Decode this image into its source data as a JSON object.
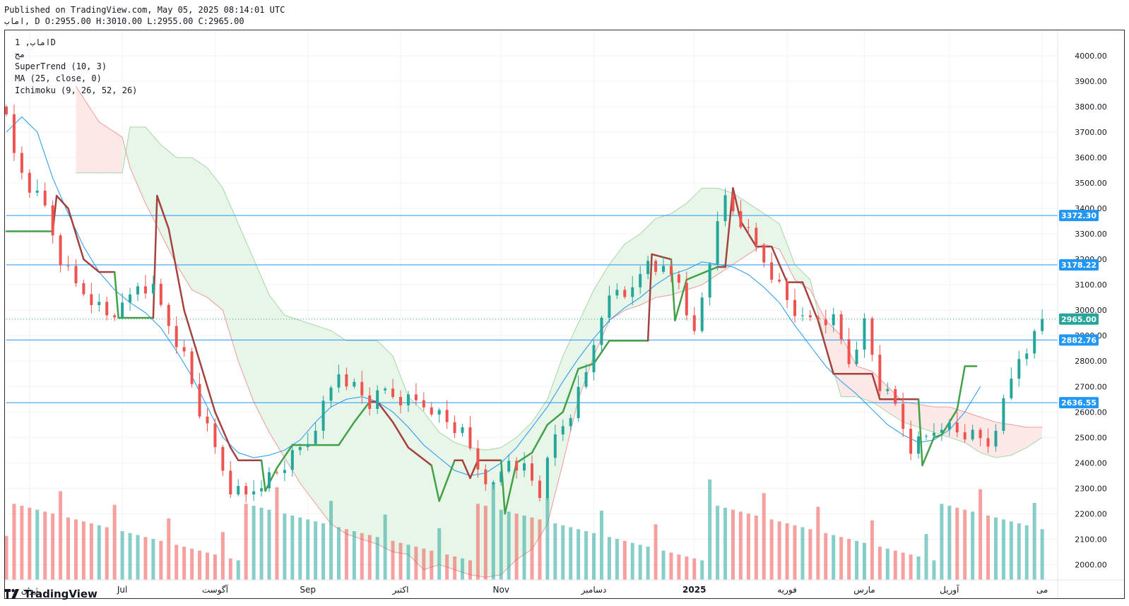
{
  "header": {
    "published": "Published on TradingView.com, May 05, 2025 08:14:01 UTC",
    "ohlc": "اماب, D O:2955.00 H:3010.00 L:2955.00 C:2965.00"
  },
  "legend": {
    "symbol": "اماب, 1D",
    "subtitle": "مج",
    "indicators": [
      "SuperTrend (10, 3)",
      "MA (25, close, 0)",
      "Ichimoku (9, 26, 52, 26)"
    ]
  },
  "footer": {
    "brand": "TradingView",
    "logo_icon": "tradingview-logo-icon"
  },
  "colors": {
    "up": "#26a69a",
    "down": "#ef5350",
    "supertrend_up": "#43a047",
    "supertrend_down": "#a5413e",
    "ma": "#2196f3",
    "hline": "#2196f3",
    "cloud_green": "#e8f5e9",
    "cloud_red": "#fde8e8"
  },
  "chart_data": {
    "type": "candlestick",
    "ylim": [
      1940,
      4100
    ],
    "y_ticks": [
      2000,
      2100,
      2200,
      2300,
      2400,
      2500,
      2600,
      2700,
      2800,
      2900,
      3000,
      3100,
      3200,
      3300,
      3400,
      3500,
      3600,
      3700,
      3800,
      3900,
      4000
    ],
    "y_tick_labels": [
      "2000.00",
      "2100.00",
      "2200.00",
      "2300.00",
      "2400.00",
      "2500.00",
      "2600.00",
      "2700.00",
      "2800.00",
      "2900.00",
      "3000.00",
      "3100.00",
      "3200.00",
      "3300.00",
      "3400.00",
      "3500.00",
      "3600.00",
      "3700.00",
      "3800.00",
      "3900.00",
      "4000.00"
    ],
    "x_labels": [
      {
        "label": "ژوئن",
        "day": 6
      },
      {
        "label": "Jul",
        "day": 30
      },
      {
        "label": "آگوست",
        "day": 54
      },
      {
        "label": "Sep",
        "day": 78
      },
      {
        "label": "اکتبر",
        "day": 102
      },
      {
        "label": "Nov",
        "day": 128
      },
      {
        "label": "دسامبر",
        "day": 152
      },
      {
        "label": "2025",
        "day": 178
      },
      {
        "label": "فوریه",
        "day": 202
      },
      {
        "label": "مارس",
        "day": 222
      },
      {
        "label": "آوریل",
        "day": 244
      },
      {
        "label": "می",
        "day": 268
      }
    ],
    "horizontal_lines": [
      {
        "value": 3372.3,
        "label": "3372.30"
      },
      {
        "value": 3178.22,
        "label": "3178.22"
      },
      {
        "value": 2882.76,
        "label": "2882.76"
      },
      {
        "value": 2636.55,
        "label": "2636.55"
      }
    ],
    "last_price": {
      "value": 2965.0,
      "label": "2965.00"
    },
    "price_path": [
      [
        0,
        3800
      ],
      [
        2,
        3600
      ],
      [
        6,
        3480
      ],
      [
        10,
        3400
      ],
      [
        14,
        3200
      ],
      [
        18,
        3100
      ],
      [
        22,
        3050
      ],
      [
        26,
        2980
      ],
      [
        30,
        3000
      ],
      [
        34,
        3100
      ],
      [
        38,
        3080
      ],
      [
        42,
        2950
      ],
      [
        46,
        2820
      ],
      [
        50,
        2600
      ],
      [
        54,
        2450
      ],
      [
        58,
        2300
      ],
      [
        62,
        2270
      ],
      [
        66,
        2330
      ],
      [
        70,
        2360
      ],
      [
        74,
        2420
      ],
      [
        78,
        2480
      ],
      [
        82,
        2620
      ],
      [
        86,
        2760
      ],
      [
        90,
        2700
      ],
      [
        94,
        2630
      ],
      [
        98,
        2680
      ],
      [
        102,
        2650
      ],
      [
        106,
        2640
      ],
      [
        110,
        2620
      ],
      [
        114,
        2560
      ],
      [
        118,
        2510
      ],
      [
        122,
        2380
      ],
      [
        126,
        2300
      ],
      [
        130,
        2420
      ],
      [
        134,
        2380
      ],
      [
        138,
        2280
      ],
      [
        142,
        2500
      ],
      [
        146,
        2600
      ],
      [
        150,
        2750
      ],
      [
        154,
        3000
      ],
      [
        158,
        3080
      ],
      [
        162,
        3060
      ],
      [
        166,
        3200
      ],
      [
        170,
        3150
      ],
      [
        174,
        3120
      ],
      [
        178,
        2900
      ],
      [
        182,
        3200
      ],
      [
        186,
        3440
      ],
      [
        190,
        3350
      ],
      [
        194,
        3250
      ],
      [
        198,
        3150
      ],
      [
        202,
        3040
      ],
      [
        206,
        2950
      ],
      [
        210,
        2970
      ],
      [
        214,
        2960
      ],
      [
        218,
        2800
      ],
      [
        222,
        2950
      ],
      [
        226,
        2700
      ],
      [
        230,
        2620
      ],
      [
        234,
        2460
      ],
      [
        238,
        2500
      ],
      [
        242,
        2560
      ],
      [
        246,
        2520
      ],
      [
        250,
        2500
      ],
      [
        254,
        2470
      ],
      [
        258,
        2630
      ],
      [
        262,
        2820
      ],
      [
        266,
        2900
      ],
      [
        268,
        2965
      ]
    ],
    "supertrend": [
      [
        0,
        3310,
        "up"
      ],
      [
        12,
        3310,
        "up"
      ],
      [
        13,
        3450,
        "down"
      ],
      [
        16,
        3400,
        "down"
      ],
      [
        20,
        3200,
        "down"
      ],
      [
        24,
        3150,
        "down"
      ],
      [
        28,
        3150,
        "down"
      ],
      [
        29,
        2970,
        "up"
      ],
      [
        38,
        2970,
        "up"
      ],
      [
        39,
        3450,
        "down"
      ],
      [
        42,
        3320,
        "down"
      ],
      [
        46,
        3000,
        "down"
      ],
      [
        50,
        2800,
        "down"
      ],
      [
        54,
        2600,
        "down"
      ],
      [
        58,
        2460,
        "down"
      ],
      [
        60,
        2410,
        "down"
      ],
      [
        66,
        2410,
        "down"
      ],
      [
        67,
        2290,
        "up"
      ],
      [
        70,
        2380,
        "up"
      ],
      [
        74,
        2470,
        "up"
      ],
      [
        86,
        2470,
        "up"
      ],
      [
        90,
        2560,
        "up"
      ],
      [
        94,
        2640,
        "up"
      ],
      [
        96,
        2640,
        "down"
      ],
      [
        100,
        2560,
        "down"
      ],
      [
        104,
        2460,
        "down"
      ],
      [
        110,
        2390,
        "down"
      ],
      [
        112,
        2250,
        "up"
      ],
      [
        116,
        2410,
        "up"
      ],
      [
        118,
        2410,
        "down"
      ],
      [
        120,
        2340,
        "down"
      ],
      [
        122,
        2410,
        "down"
      ],
      [
        128,
        2410,
        "down"
      ],
      [
        129,
        2200,
        "up"
      ],
      [
        132,
        2400,
        "up"
      ],
      [
        136,
        2440,
        "up"
      ],
      [
        140,
        2550,
        "up"
      ],
      [
        144,
        2600,
        "up"
      ],
      [
        148,
        2770,
        "up"
      ],
      [
        152,
        2790,
        "up"
      ],
      [
        156,
        2880,
        "up"
      ],
      [
        166,
        2880,
        "up"
      ],
      [
        167,
        3220,
        "down"
      ],
      [
        172,
        3200,
        "down"
      ],
      [
        173,
        2960,
        "up"
      ],
      [
        176,
        3120,
        "up"
      ],
      [
        184,
        3170,
        "up"
      ],
      [
        186,
        3170,
        "down"
      ],
      [
        188,
        3480,
        "down"
      ],
      [
        190,
        3350,
        "down"
      ],
      [
        194,
        3250,
        "down"
      ],
      [
        198,
        3250,
        "down"
      ],
      [
        202,
        3110,
        "down"
      ],
      [
        206,
        3110,
        "down"
      ],
      [
        210,
        2960,
        "down"
      ],
      [
        214,
        2750,
        "down"
      ],
      [
        224,
        2750,
        "down"
      ],
      [
        226,
        2650,
        "down"
      ],
      [
        236,
        2650,
        "down"
      ],
      [
        237,
        2390,
        "up"
      ],
      [
        240,
        2500,
        "up"
      ],
      [
        242,
        2510,
        "up"
      ],
      [
        246,
        2610,
        "up"
      ],
      [
        248,
        2780,
        "up"
      ],
      [
        251,
        2780,
        "up"
      ]
    ],
    "ma": [
      [
        0,
        3700
      ],
      [
        4,
        3760
      ],
      [
        8,
        3700
      ],
      [
        12,
        3520
      ],
      [
        16,
        3380
      ],
      [
        20,
        3250
      ],
      [
        24,
        3150
      ],
      [
        28,
        3080
      ],
      [
        32,
        3030
      ],
      [
        36,
        2990
      ],
      [
        40,
        2930
      ],
      [
        44,
        2840
      ],
      [
        48,
        2740
      ],
      [
        52,
        2620
      ],
      [
        56,
        2500
      ],
      [
        60,
        2440
      ],
      [
        64,
        2420
      ],
      [
        68,
        2430
      ],
      [
        72,
        2450
      ],
      [
        76,
        2490
      ],
      [
        80,
        2560
      ],
      [
        84,
        2620
      ],
      [
        88,
        2650
      ],
      [
        92,
        2660
      ],
      [
        96,
        2640
      ],
      [
        100,
        2600
      ],
      [
        104,
        2540
      ],
      [
        108,
        2470
      ],
      [
        112,
        2420
      ],
      [
        116,
        2370
      ],
      [
        120,
        2350
      ],
      [
        124,
        2360
      ],
      [
        128,
        2400
      ],
      [
        132,
        2460
      ],
      [
        136,
        2540
      ],
      [
        140,
        2620
      ],
      [
        144,
        2720
      ],
      [
        148,
        2810
      ],
      [
        152,
        2890
      ],
      [
        156,
        2960
      ],
      [
        160,
        3010
      ],
      [
        164,
        3050
      ],
      [
        168,
        3100
      ],
      [
        172,
        3140
      ],
      [
        176,
        3160
      ],
      [
        180,
        3190
      ],
      [
        184,
        3180
      ],
      [
        188,
        3170
      ],
      [
        192,
        3140
      ],
      [
        196,
        3090
      ],
      [
        200,
        3030
      ],
      [
        204,
        2940
      ],
      [
        208,
        2860
      ],
      [
        212,
        2780
      ],
      [
        216,
        2720
      ],
      [
        220,
        2670
      ],
      [
        224,
        2610
      ],
      [
        228,
        2550
      ],
      [
        232,
        2510
      ],
      [
        236,
        2480
      ],
      [
        240,
        2490
      ],
      [
        244,
        2530
      ],
      [
        248,
        2600
      ],
      [
        252,
        2700
      ]
    ],
    "cloud": [
      [
        18,
        3540,
        3880
      ],
      [
        24,
        3540,
        3740
      ],
      [
        28,
        3540,
        3700
      ],
      [
        30,
        3540,
        3680
      ],
      [
        32,
        3720,
        3560
      ],
      [
        36,
        3720,
        3420
      ],
      [
        40,
        3650,
        3300
      ],
      [
        44,
        3600,
        3180
      ],
      [
        48,
        3600,
        3080
      ],
      [
        52,
        3560,
        3050
      ],
      [
        56,
        3480,
        3000
      ],
      [
        60,
        3340,
        2800
      ],
      [
        64,
        3200,
        2640
      ],
      [
        68,
        3060,
        2520
      ],
      [
        72,
        2980,
        2420
      ],
      [
        76,
        2960,
        2320
      ],
      [
        80,
        2940,
        2240
      ],
      [
        84,
        2920,
        2160
      ],
      [
        88,
        2880,
        2120
      ],
      [
        92,
        2880,
        2100
      ],
      [
        96,
        2880,
        2080
      ],
      [
        100,
        2820,
        2050
      ],
      [
        104,
        2660,
        2040
      ],
      [
        108,
        2600,
        1980
      ],
      [
        112,
        2520,
        2000
      ],
      [
        116,
        2480,
        1980
      ],
      [
        120,
        2460,
        1960
      ],
      [
        124,
        2450,
        1950
      ],
      [
        128,
        2460,
        1960
      ],
      [
        132,
        2500,
        2020
      ],
      [
        136,
        2560,
        2060
      ],
      [
        140,
        2650,
        2160
      ],
      [
        144,
        2820,
        2400
      ],
      [
        148,
        2950,
        2650
      ],
      [
        152,
        3080,
        2820
      ],
      [
        156,
        3180,
        2960
      ],
      [
        160,
        3260,
        3000
      ],
      [
        164,
        3300,
        3020
      ],
      [
        168,
        3360,
        3050
      ],
      [
        172,
        3380,
        3060
      ],
      [
        176,
        3420,
        3080
      ],
      [
        180,
        3480,
        3100
      ],
      [
        184,
        3480,
        3140
      ],
      [
        188,
        3460,
        3180
      ],
      [
        192,
        3420,
        3220
      ],
      [
        196,
        3380,
        3260
      ],
      [
        200,
        3340,
        3240
      ],
      [
        204,
        3180,
        3120
      ],
      [
        208,
        3120,
        3080
      ],
      [
        212,
        2860,
        2960
      ],
      [
        216,
        2660,
        2900
      ],
      [
        220,
        2660,
        2780
      ],
      [
        224,
        2640,
        2760
      ],
      [
        228,
        2600,
        2700
      ],
      [
        232,
        2560,
        2640
      ],
      [
        236,
        2540,
        2630
      ],
      [
        240,
        2520,
        2620
      ],
      [
        244,
        2500,
        2620
      ],
      [
        248,
        2480,
        2600
      ],
      [
        252,
        2440,
        2580
      ],
      [
        256,
        2420,
        2560
      ],
      [
        260,
        2430,
        2550
      ],
      [
        264,
        2460,
        2540
      ],
      [
        268,
        2500,
        2540
      ]
    ],
    "volume_scale_max": 100
  }
}
